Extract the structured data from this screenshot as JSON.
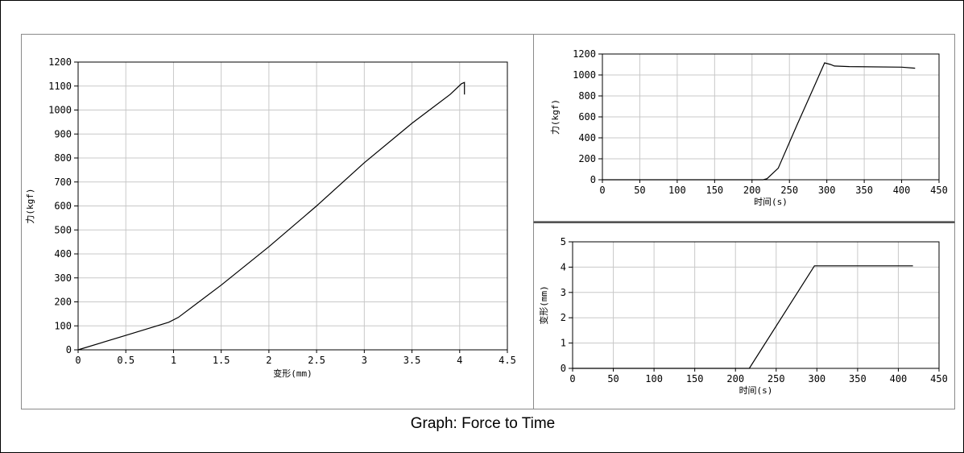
{
  "caption": "Graph: Force to Time",
  "colors": {
    "line": "#000000",
    "grid": "#c8c8c8",
    "axis": "#000000",
    "border": "#8a8a8a"
  },
  "chart_data": [
    {
      "id": "force-deformation",
      "type": "line",
      "title": "",
      "xlabel": "变形(mm)",
      "ylabel": "力(kgf)",
      "xlim": [
        0,
        4.5
      ],
      "ylim": [
        0,
        1200
      ],
      "xticks": [
        "0",
        "0.5",
        "1",
        "1.5",
        "2",
        "2.5",
        "3",
        "3.5",
        "4",
        "4.5"
      ],
      "yticks": [
        "0",
        "100",
        "200",
        "300",
        "400",
        "500",
        "600",
        "700",
        "800",
        "900",
        "1000",
        "1100",
        "1200"
      ],
      "grid": true,
      "series": [
        {
          "x": [
            0,
            0.5,
            0.95,
            1.05,
            1.5,
            2.0,
            2.5,
            3.0,
            3.5,
            3.9,
            4.02,
            4.05,
            4.05
          ],
          "y": [
            0,
            60,
            115,
            135,
            270,
            430,
            600,
            780,
            945,
            1065,
            1110,
            1115,
            1065
          ]
        }
      ]
    },
    {
      "id": "force-time",
      "type": "line",
      "title": "",
      "xlabel": "时间(s)",
      "ylabel": "力(kgf)",
      "xlim": [
        0,
        450
      ],
      "ylim": [
        0,
        1200
      ],
      "xticks": [
        "0",
        "50",
        "100",
        "150",
        "200",
        "250",
        "300",
        "350",
        "400",
        "450"
      ],
      "yticks": [
        "0",
        "200",
        "400",
        "600",
        "800",
        "1000",
        "1200"
      ],
      "grid": true,
      "series": [
        {
          "x": [
            0,
            215,
            220,
            235,
            260,
            285,
            297,
            305,
            310,
            330,
            400,
            418
          ],
          "y": [
            0,
            0,
            10,
            110,
            520,
            920,
            1115,
            1100,
            1085,
            1080,
            1075,
            1065
          ]
        }
      ]
    },
    {
      "id": "deformation-time",
      "type": "line",
      "title": "",
      "xlabel": "时间(s)",
      "ylabel": "变形(mm)",
      "xlim": [
        0,
        450
      ],
      "ylim": [
        0,
        5
      ],
      "xticks": [
        "0",
        "50",
        "100",
        "150",
        "200",
        "250",
        "300",
        "350",
        "400",
        "450"
      ],
      "yticks": [
        "0",
        "1",
        "2",
        "3",
        "4",
        "5"
      ],
      "grid": true,
      "series": [
        {
          "x": [
            0,
            217,
            297,
            418
          ],
          "y": [
            0,
            0,
            4.05,
            4.05
          ]
        }
      ]
    }
  ]
}
